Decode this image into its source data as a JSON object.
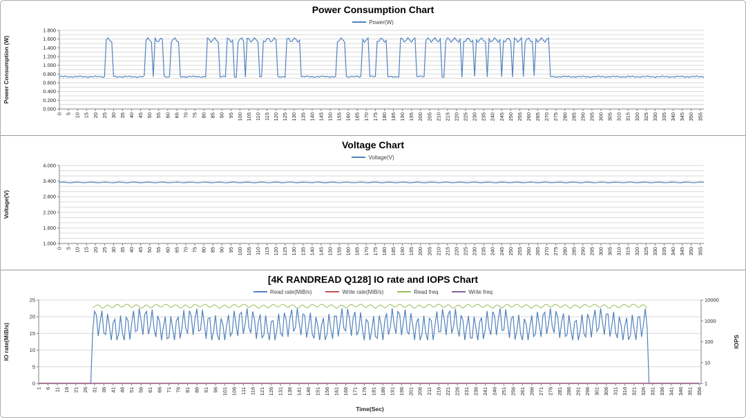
{
  "chart_data": [
    {
      "type": "line",
      "title": "Power Consumption Chart",
      "ylabel": "Power Consumption (W)",
      "ylim": [
        0,
        1.8
      ],
      "ytick_step": 0.2,
      "ytick_labels": [
        "0.000",
        "0.200",
        "0.400",
        "0.600",
        "0.800",
        "1.000",
        "1.200",
        "1.400",
        "1.600",
        "1.800"
      ],
      "grid_step": 0.1,
      "xlim": [
        0,
        357
      ],
      "xticks": {
        "start": 0,
        "step": 5,
        "end": 355
      },
      "legend_position": "top",
      "grid": true,
      "series": [
        {
          "name": "Power(W)",
          "color": "#4F81BD",
          "baseline": 0.74,
          "spike_level": 1.58,
          "spikes": [
            [
              26,
              29
            ],
            [
              48,
              51
            ],
            [
              53,
              57
            ],
            [
              62,
              66
            ],
            [
              82,
              88
            ],
            [
              93,
              96
            ],
            [
              99,
              102
            ],
            [
              104,
              110
            ],
            [
              113,
              120
            ],
            [
              126,
              133
            ],
            [
              154,
              158
            ],
            [
              168,
              171
            ],
            [
              176,
              181
            ],
            [
              189,
              197
            ],
            [
              203,
              211
            ],
            [
              214,
              222
            ],
            [
              224,
              229
            ],
            [
              231,
              236
            ],
            [
              238,
              244
            ],
            [
              246,
              250
            ],
            [
              252,
              256
            ],
            [
              258,
              262
            ],
            [
              264,
              267
            ],
            [
              268,
              271
            ]
          ]
        }
      ]
    },
    {
      "type": "line",
      "title": "Voltage Chart",
      "ylabel": "Voltage(V)",
      "ylim": [
        1.0,
        4.0
      ],
      "ytick_step": 0.6,
      "ytick_labels": [
        "1.000",
        "1.600",
        "2.200",
        "2.800",
        "3.400",
        "4.000"
      ],
      "grid_step": 0.2,
      "xlim": [
        0,
        357
      ],
      "xticks": {
        "start": 0,
        "step": 5,
        "end": 355
      },
      "legend_position": "top",
      "grid": true,
      "series": [
        {
          "name": "Voltage(V)",
          "color": "#4F81BD",
          "baseline": 3.35
        }
      ]
    },
    {
      "type": "line",
      "title": "[4K RANDREAD Q128] IO rate and IOPS Chart",
      "ylabel": "IO rate(MiB/s)",
      "ylabel_right": "IOPS",
      "xlabel": "Time(Sec)",
      "ylim": [
        0,
        25
      ],
      "ytick_step": 5,
      "ytick_labels": [
        "0",
        "5",
        "10",
        "15",
        "20",
        "25"
      ],
      "grid_step": 5,
      "ylim_right_log": [
        1,
        10000
      ],
      "ytick_labels_right": [
        "1",
        "10",
        "100",
        "1000",
        "10000"
      ],
      "xlim": [
        1,
        357
      ],
      "xticks": {
        "start": 1,
        "step": 5,
        "end": 356
      },
      "active_range": [
        30,
        328
      ],
      "legend_position": "top",
      "grid": true,
      "series": [
        {
          "name": "Read rate(MiB/s)",
          "color": "#4F81BD",
          "axis": "left",
          "mean": 17.4,
          "amp": 4.2
        },
        {
          "name": "Write rate(MiB/s)",
          "color": "#C0504D",
          "axis": "left",
          "mean": 0.12,
          "amp": 0
        },
        {
          "name": "Read freq",
          "color": "#9BBB59",
          "axis": "right",
          "mean": 5200,
          "amp": 900
        },
        {
          "name": "Write freq",
          "color": "#8064A2",
          "axis": "right",
          "mean": 1,
          "amp": 0
        }
      ]
    }
  ]
}
